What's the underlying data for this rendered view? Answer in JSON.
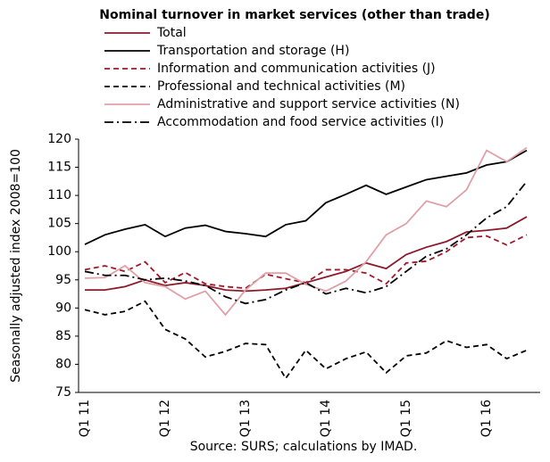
{
  "chart_data": {
    "type": "line",
    "title": "Nominal turnover in market services (other than trade)",
    "y_label": "Seasonally adjusted index 2008=100",
    "source": "Source: SURS; calculations by IMAD.",
    "categories": [
      "Q1 11",
      null,
      null,
      null,
      "Q1 12",
      null,
      null,
      null,
      "Q1 13",
      null,
      null,
      null,
      "Q1 14",
      null,
      null,
      null,
      "Q1 15",
      null,
      null,
      null,
      "Q1 16",
      null,
      null
    ],
    "ylim": [
      75,
      120
    ],
    "yticks": [
      75,
      80,
      85,
      90,
      95,
      100,
      105,
      110,
      115,
      120
    ],
    "grid": false,
    "legend": "top-left",
    "series": [
      {
        "name": "Total",
        "color": "#8b1a2b",
        "line_style": "solid",
        "values": [
          93.2,
          93.2,
          93.8,
          95.0,
          94.0,
          94.5,
          94.0,
          93.2,
          93.0,
          93.2,
          93.5,
          94.5,
          95.5,
          96.5,
          98.0,
          97.0,
          99.5,
          100.8,
          101.8,
          103.5,
          103.8,
          104.2,
          106.2
        ]
      },
      {
        "name": "Transportation and storage (H)",
        "color": "#000000",
        "line_style": "solid",
        "values": [
          101.3,
          103.0,
          104.0,
          104.8,
          102.7,
          104.2,
          104.7,
          103.6,
          103.2,
          102.7,
          104.8,
          105.5,
          108.7,
          110.2,
          111.8,
          110.2,
          111.5,
          112.8,
          113.4,
          114.0,
          115.4,
          116.0,
          118.0
        ]
      },
      {
        "name": "Information and communication activities (J)",
        "color": "#a0182a",
        "line_style": "dashed",
        "values": [
          96.8,
          97.5,
          96.5,
          98.2,
          94.5,
          96.3,
          94.3,
          93.8,
          93.5,
          96.0,
          95.2,
          94.5,
          96.8,
          96.8,
          96.2,
          94.3,
          98.0,
          98.3,
          100.0,
          102.5,
          102.8,
          101.2,
          103.0
        ]
      },
      {
        "name": "Professional and technical activities (M)",
        "color": "#000000",
        "line_style": "dashed",
        "values": [
          89.7,
          88.8,
          89.4,
          91.2,
          86.2,
          84.5,
          81.3,
          82.3,
          83.7,
          83.5,
          77.5,
          82.5,
          79.2,
          81.0,
          82.2,
          78.5,
          81.5,
          82.0,
          84.2,
          83.0,
          83.5,
          81.0,
          82.5
        ]
      },
      {
        "name": "Administrative and support service activities (N)",
        "color": "#e0a0a8",
        "line_style": "solid",
        "values": [
          95.3,
          95.4,
          97.5,
          94.5,
          93.8,
          91.6,
          93.0,
          88.8,
          93.2,
          96.2,
          96.2,
          94.2,
          93.0,
          94.8,
          98.2,
          103.0,
          105.0,
          109.0,
          108.0,
          111.0,
          118.0,
          116.0,
          118.5
        ]
      },
      {
        "name": "Accommodation and food service activities (I)",
        "color": "#000000",
        "line_style": "dashdot",
        "values": [
          96.5,
          95.8,
          95.8,
          95.0,
          95.3,
          94.8,
          94.0,
          92.0,
          90.8,
          91.5,
          93.2,
          94.5,
          92.5,
          93.5,
          92.7,
          93.8,
          96.5,
          99.2,
          100.5,
          103.0,
          106.0,
          108.0,
          112.5
        ]
      }
    ]
  }
}
